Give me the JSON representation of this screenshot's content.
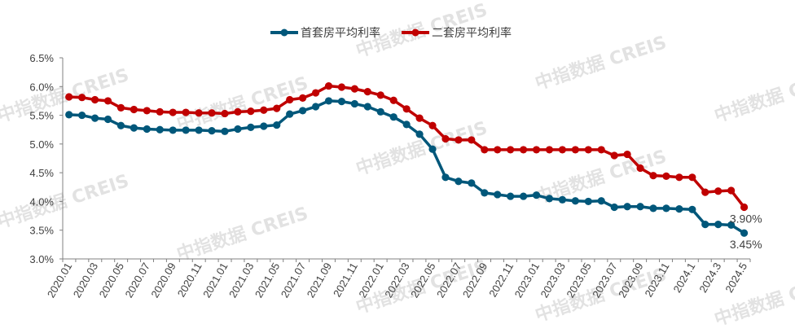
{
  "chart_data": {
    "type": "line",
    "title": "",
    "xlabel": "",
    "ylabel": "",
    "ylim": [
      3.0,
      6.5
    ],
    "y_ticks": [
      "3.0%",
      "3.5%",
      "4.0%",
      "4.5%",
      "5.0%",
      "5.5%",
      "6.0%",
      "6.5%"
    ],
    "y_tick_values": [
      3.0,
      3.5,
      4.0,
      4.5,
      5.0,
      5.5,
      6.0,
      6.5
    ],
    "legend_position": "top-center",
    "x": [
      "2020.01",
      "2020.02",
      "2020.03",
      "2020.04",
      "2020.05",
      "2020.06",
      "2020.07",
      "2020.08",
      "2020.09",
      "2020.10",
      "2020.11",
      "2020.12",
      "2021.01",
      "2021.02",
      "2021.03",
      "2021.04",
      "2021.05",
      "2021.06",
      "2021.07",
      "2021.08",
      "2021.09",
      "2021.10",
      "2021.11",
      "2021.12",
      "2022.01",
      "2022.02",
      "2022.03",
      "2022.04",
      "2022.05",
      "2022.06",
      "2022.07",
      "2022.08",
      "2022.09",
      "2022.10",
      "2022.11",
      "2022.12",
      "2023.01",
      "2023.02",
      "2023.03",
      "2023.04",
      "2023.05",
      "2023.06",
      "2023.07",
      "2023.08",
      "2023.09",
      "2023.10",
      "2023.11",
      "2023.12",
      "2024.1",
      "2024.2",
      "2024.3",
      "2024.4",
      "2024.5"
    ],
    "x_tick_labels": [
      "2020.01",
      "2020.03",
      "2020.05",
      "2020.07",
      "2020.09",
      "2020.11",
      "2021.01",
      "2021.03",
      "2021.05",
      "2021.07",
      "2021.09",
      "2021.11",
      "2022.01",
      "2022.03",
      "2022.05",
      "2022.07",
      "2022.09",
      "2022.11",
      "2023.01",
      "2023.03",
      "2023.05",
      "2023.07",
      "2023.09",
      "2023.11",
      "2024.1",
      "2024.3",
      "2024.5"
    ],
    "series": [
      {
        "name": "首套房平均利率",
        "color": "#00577A",
        "values": [
          5.51,
          5.5,
          5.45,
          5.43,
          5.32,
          5.28,
          5.26,
          5.25,
          5.24,
          5.24,
          5.24,
          5.23,
          5.22,
          5.26,
          5.29,
          5.31,
          5.33,
          5.52,
          5.58,
          5.65,
          5.75,
          5.74,
          5.7,
          5.65,
          5.56,
          5.47,
          5.34,
          5.17,
          4.91,
          4.42,
          4.35,
          4.32,
          4.15,
          4.12,
          4.09,
          4.09,
          4.11,
          4.05,
          4.03,
          4.01,
          4.0,
          4.01,
          3.9,
          3.91,
          3.91,
          3.88,
          3.88,
          3.87,
          3.86,
          3.6,
          3.6,
          3.59,
          3.45
        ],
        "end_label": "3.45%"
      },
      {
        "name": "二套房平均利率",
        "color": "#C00000",
        "values": [
          5.82,
          5.81,
          5.77,
          5.75,
          5.63,
          5.6,
          5.58,
          5.56,
          5.55,
          5.55,
          5.54,
          5.54,
          5.53,
          5.56,
          5.57,
          5.59,
          5.62,
          5.77,
          5.8,
          5.89,
          6.01,
          5.99,
          5.96,
          5.91,
          5.85,
          5.76,
          5.61,
          5.45,
          5.32,
          5.09,
          5.07,
          5.07,
          4.9,
          4.9,
          4.9,
          4.9,
          4.9,
          4.9,
          4.9,
          4.9,
          4.9,
          4.9,
          4.8,
          4.82,
          4.58,
          4.45,
          4.44,
          4.42,
          4.42,
          4.16,
          4.18,
          4.19,
          3.9
        ],
        "end_label": "3.90%"
      }
    ]
  },
  "watermark": "中指数据 CREIS"
}
